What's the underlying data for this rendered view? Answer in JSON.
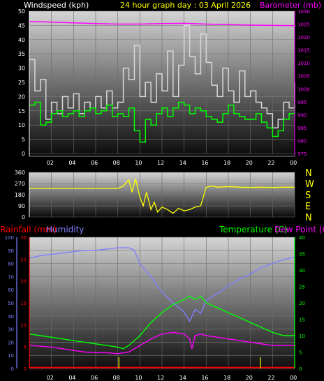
{
  "header": {
    "windspeed_label": "Windspeed (kph)",
    "graph_title": "24 hour graph day : 03 April 2026",
    "barometer_label": "Barometer (mb)"
  },
  "direction_labels": [
    "N",
    "W",
    "S",
    "E",
    "N"
  ],
  "lower": {
    "rainfall_label": "Rainfall (mm)",
    "humidity_label": "Humidity",
    "temperature_label": "Temperature (C)",
    "dewpoint_label": "Dew Point (C)"
  },
  "colors": {
    "wind": "#ffffff",
    "gust": "#d8d8d8",
    "avg_wind": "#00ff00",
    "barometer": "#ff00ff",
    "direction": "#ffff00",
    "rainfall": "#ff0000",
    "humidity": "#8080ff",
    "temperature": "#00ff00",
    "dewpoint": "#ff00ff",
    "rain_bar": "#ffff00"
  },
  "x_ticks": [
    "02",
    "04",
    "06",
    "08",
    "10",
    "12",
    "14",
    "16",
    "18",
    "20",
    "22",
    "00"
  ],
  "chart_data": [
    {
      "type": "line",
      "title": "24 hour graph day : 03 April 2026",
      "x_range_hours": [
        0,
        24
      ],
      "grid": true,
      "y_left": {
        "label": "Windspeed (kph)",
        "ticks": [
          "0",
          "5",
          "10",
          "15",
          "20",
          "25",
          "30",
          "35",
          "40",
          "45",
          "50"
        ],
        "ylim": [
          0,
          50
        ]
      },
      "y_right": {
        "label": "Barometer (mb)",
        "ticks": [
          "975",
          "980",
          "985",
          "990",
          "995",
          "1000",
          "1005",
          "1010",
          "1015",
          "1020",
          "1025",
          "1030"
        ],
        "ylim": [
          975,
          1030
        ]
      },
      "series": [
        {
          "axis": "left",
          "color": "#d8d8d8",
          "x": [
            0,
            0.5,
            1,
            1.5,
            2,
            2.5,
            3,
            3.5,
            4,
            4.5,
            5,
            5.5,
            6,
            6.5,
            7,
            7.5,
            8,
            8.5,
            9,
            9.5,
            10,
            10.5,
            11,
            11.5,
            12,
            12.5,
            13,
            13.5,
            14,
            14.5,
            15,
            15.5,
            16,
            16.5,
            17,
            17.5,
            18,
            18.5,
            19,
            19.5,
            20,
            20.5,
            21,
            21.5,
            22,
            22.5,
            23,
            23.5,
            24
          ],
          "values": [
            33,
            22,
            26,
            12,
            18,
            14,
            20,
            16,
            21,
            14,
            18,
            16,
            20,
            16,
            22,
            16,
            18,
            30,
            26,
            38,
            20,
            25,
            18,
            28,
            22,
            36,
            20,
            31,
            45,
            34,
            28,
            42,
            32,
            24,
            20,
            30,
            22,
            18,
            29,
            20,
            22,
            18,
            16,
            14,
            9,
            12,
            18,
            16,
            25
          ]
        },
        {
          "axis": "left",
          "color": "#00ff00",
          "x": [
            0,
            0.5,
            1,
            1.5,
            2,
            2.5,
            3,
            3.5,
            4,
            4.5,
            5,
            5.5,
            6,
            6.5,
            7,
            7.5,
            8,
            8.5,
            9,
            9.5,
            10,
            10.5,
            11,
            11.5,
            12,
            12.5,
            13,
            13.5,
            14,
            14.5,
            15,
            15.5,
            16,
            16.5,
            17,
            17.5,
            18,
            18.5,
            19,
            19.5,
            20,
            20.5,
            21,
            21.5,
            22,
            22.5,
            23,
            23.5,
            24
          ],
          "values": [
            17,
            18,
            10,
            11,
            14,
            15,
            13,
            14,
            15,
            13,
            15,
            16,
            14,
            15,
            17,
            13,
            14,
            13,
            16,
            8,
            4,
            12,
            10,
            14,
            16,
            13,
            16,
            18,
            17,
            14,
            16,
            15,
            13,
            12,
            11,
            14,
            17,
            14,
            13,
            12,
            12,
            14,
            11,
            9,
            6,
            8,
            12,
            14,
            17
          ]
        },
        {
          "axis": "right",
          "color": "#ff00ff",
          "x": [
            0,
            2,
            4,
            6,
            8,
            10,
            12,
            14,
            16,
            18,
            20,
            22,
            24
          ],
          "values": [
            1026,
            1025.8,
            1025.5,
            1025.2,
            1025,
            1025,
            1025.2,
            1025.3,
            1025,
            1024.8,
            1024.6,
            1024.5,
            1024.4
          ]
        }
      ]
    },
    {
      "type": "line",
      "title": "",
      "x_range_hours": [
        0,
        24
      ],
      "grid": true,
      "y_left": {
        "ticks": [
          "0",
          "90",
          "180",
          "270",
          "360"
        ],
        "ylim": [
          0,
          360
        ]
      },
      "y_right_labels": [
        "N",
        "W",
        "S",
        "E",
        "N"
      ],
      "series": [
        {
          "color": "#ffff00",
          "x": [
            0,
            1,
            2,
            3,
            4,
            5,
            6,
            7,
            8,
            8.5,
            9,
            9.3,
            9.6,
            10,
            10.3,
            10.6,
            11,
            11.3,
            11.6,
            12,
            12.5,
            13,
            13.5,
            14,
            14.5,
            15,
            15.5,
            16,
            16.5,
            17,
            18,
            19,
            20,
            21,
            22,
            23,
            24
          ],
          "values": [
            230,
            230,
            230,
            230,
            230,
            230,
            230,
            230,
            230,
            250,
            300,
            200,
            310,
            160,
            90,
            200,
            60,
            120,
            40,
            80,
            60,
            30,
            70,
            50,
            60,
            80,
            90,
            240,
            250,
            240,
            245,
            240,
            238,
            240,
            238,
            240,
            240
          ]
        }
      ]
    },
    {
      "type": "line",
      "title": "",
      "x_range_hours": [
        0,
        24
      ],
      "grid": true,
      "y_left_rainfall": {
        "label": "Rainfall (mm)",
        "ticks": [
          "0",
          "5",
          "10",
          "15",
          "20",
          "25",
          "30"
        ],
        "ylim": [
          0,
          30
        ]
      },
      "y_left_humidity": {
        "label": "Humidity",
        "ticks": [
          "0",
          "10",
          "20",
          "30",
          "40",
          "50",
          "60",
          "70",
          "80",
          "90",
          "100"
        ],
        "ylim": [
          0,
          100
        ]
      },
      "y_right": {
        "label": "Temperature (C) / Dew Point (C)",
        "ticks": [
          "0",
          "5",
          "10",
          "15",
          "20",
          "25",
          "30",
          "35",
          "40"
        ],
        "ylim": [
          0,
          40
        ]
      },
      "series": [
        {
          "name": "Humidity",
          "axis": "humidity",
          "color": "#8080ff",
          "x": [
            0,
            1,
            2,
            3,
            4,
            5,
            6,
            7,
            8,
            9,
            9.5,
            10,
            11,
            12,
            13,
            14,
            14.5,
            15,
            15.5,
            16,
            17,
            18,
            19,
            20,
            21,
            22,
            23,
            24
          ],
          "values": [
            84,
            86,
            87,
            88,
            89,
            90,
            90,
            91,
            92,
            92,
            90,
            80,
            70,
            58,
            50,
            43,
            36,
            45,
            42,
            52,
            57,
            63,
            68,
            72,
            77,
            80,
            83,
            85
          ]
        },
        {
          "name": "Temperature (C)",
          "axis": "right",
          "color": "#00ff00",
          "x": [
            0,
            1,
            2,
            3,
            4,
            5,
            6,
            7,
            8,
            8.5,
            9,
            10,
            11,
            12,
            13,
            14,
            14.5,
            15,
            15.5,
            16,
            17,
            18,
            19,
            20,
            21,
            22,
            23,
            24
          ],
          "values": [
            10.5,
            10,
            9.5,
            9,
            8.5,
            8,
            7.5,
            7,
            6.5,
            6,
            7,
            10,
            14,
            17,
            19.5,
            21,
            22,
            21,
            22,
            20,
            18.5,
            17,
            15.5,
            14,
            12.5,
            11,
            10,
            10
          ]
        },
        {
          "name": "Dew Point (C)",
          "axis": "right",
          "color": "#ff00ff",
          "x": [
            0,
            1,
            2,
            3,
            4,
            5,
            6,
            7,
            8,
            9,
            10,
            11,
            12,
            13,
            14,
            14.5,
            14.7,
            15,
            15.5,
            16,
            17,
            18,
            19,
            20,
            21,
            22,
            23,
            24
          ],
          "values": [
            7,
            6.8,
            6.5,
            6,
            5.5,
            5,
            4.8,
            4.8,
            4.5,
            5,
            7,
            9,
            10.5,
            11,
            10.5,
            9,
            6,
            10,
            10.5,
            10,
            9.5,
            9,
            8.5,
            8,
            7.5,
            7,
            7,
            7
          ]
        },
        {
          "name": "Rainfall (mm)",
          "axis": "rainfall",
          "color": "#ff0000",
          "x": [
            0,
            24
          ],
          "values": [
            0.2,
            0.2
          ]
        }
      ],
      "rain_events_hours": [
        8.1,
        20.9
      ]
    }
  ]
}
